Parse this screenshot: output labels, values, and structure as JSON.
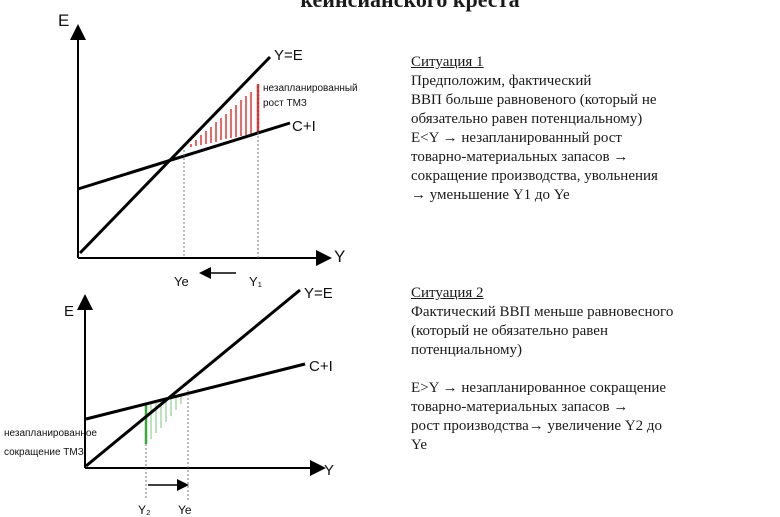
{
  "title": "кейнсианского креста",
  "diagram1": {
    "axis_e": "E",
    "axis_y": "Y",
    "line_ye": "Y=E",
    "line_ci": "C+I",
    "tick_ye": "Ye",
    "tick_y1": "Y₁",
    "note_line1": "незапланированный",
    "note_line2": "рост ТМЗ"
  },
  "diagram2": {
    "axis_e": "E",
    "axis_y": "Y",
    "line_ye": "Y=E",
    "line_ci": "C+I",
    "tick_y2": "Y₂",
    "tick_ye": "Ye",
    "note_line1": "незапланированное",
    "note_line2": "сокращение ТМЗ"
  },
  "situation1": {
    "heading": "Ситуация 1",
    "lines": [
      "Предположим, фактический",
      "ВВП больше равновеного (который не",
      "обязательно равен потенциальному)",
      "E<Y → незапланированный рост",
      "товарно-материальных запасов →",
      "сокращение производства, увольнения",
      "→ уменьшение Y1 до Ye"
    ]
  },
  "situation2": {
    "heading": "Ситуация 2",
    "lines": [
      "Фактический ВВП меньше равновесного",
      "(который не обязательно равен",
      "потенциальному)"
    ],
    "lines2": [
      "E>Y → незапланированное сокращение",
      "товарно-материальных запасов →",
      "рост производства→ увеличение  Y2 до",
      "Ye"
    ]
  },
  "colors": {
    "hatch_red": "#e02a2a",
    "hatch_green": "#3aa83a",
    "line": "#000000"
  }
}
